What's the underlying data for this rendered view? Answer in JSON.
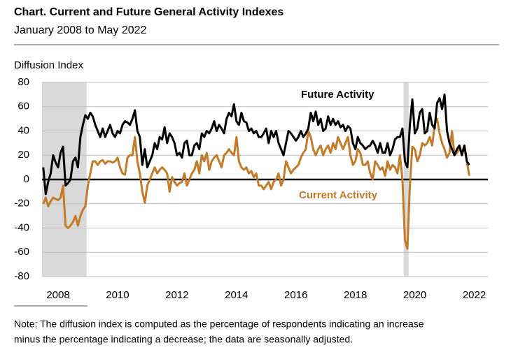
{
  "chart_data": {
    "type": "line",
    "title": "Chart. Current and Future General Activity Indexes",
    "subtitle": "January 2008 to May 2022",
    "y_axis_label": "Diffusion Index",
    "note": [
      "Note: The diffusion index is computed as the percentage of respondents indicating an increase",
      "minus the percentage indicating a decrease; the data are seasonally adjusted."
    ],
    "categories": [
      null,
      null,
      null,
      null,
      null,
      null,
      "2008",
      null,
      null,
      null,
      null,
      null,
      null,
      null,
      null,
      null,
      null,
      null,
      null,
      null,
      null,
      null,
      null,
      null,
      null,
      null,
      null,
      null,
      null,
      null,
      "2010",
      null,
      null,
      null,
      null,
      null,
      null,
      null,
      null,
      null,
      null,
      null,
      null,
      null,
      null,
      null,
      null,
      null,
      null,
      null,
      null,
      null,
      null,
      null,
      "2012",
      null,
      null,
      null,
      null,
      null,
      null,
      null,
      null,
      null,
      null,
      null,
      null,
      null,
      null,
      null,
      null,
      null,
      null,
      null,
      null,
      null,
      null,
      null,
      "2014",
      null,
      null,
      null,
      null,
      null,
      null,
      null,
      null,
      null,
      null,
      null,
      null,
      null,
      null,
      null,
      null,
      null,
      null,
      null,
      null,
      null,
      null,
      null,
      "2016",
      null,
      null,
      null,
      null,
      null,
      null,
      null,
      null,
      null,
      null,
      null,
      null,
      null,
      null,
      null,
      null,
      null,
      null,
      null,
      null,
      null,
      null,
      null,
      "2018",
      null,
      null,
      null,
      null,
      null,
      null,
      null,
      null,
      null,
      null,
      null,
      null,
      null,
      null,
      null,
      null,
      null,
      null,
      null,
      null,
      null,
      null,
      null,
      "2020",
      null,
      null,
      null,
      null,
      null,
      null,
      null,
      null,
      null,
      null,
      null,
      null,
      null,
      null,
      null,
      null,
      null,
      null,
      null,
      null,
      null,
      null,
      null,
      "2022",
      null,
      null,
      null,
      null,
      null
    ],
    "series": [
      {
        "name": "Future Activity",
        "color": "#000000",
        "values": [
          10,
          -12,
          -2,
          5,
          20,
          14,
          10,
          22,
          27,
          -5,
          -3,
          0,
          15,
          18,
          10,
          35,
          45,
          53,
          50,
          55,
          52,
          45,
          40,
          35,
          42,
          35,
          40,
          45,
          38,
          35,
          40,
          38,
          45,
          48,
          47,
          45,
          50,
          57,
          40,
          35,
          12,
          25,
          10,
          15,
          20,
          30,
          25,
          35,
          33,
          43,
          30,
          38,
          35,
          30,
          20,
          22,
          18,
          30,
          32,
          20,
          20,
          28,
          30,
          25,
          38,
          35,
          40,
          38,
          42,
          48,
          40,
          45,
          42,
          38,
          50,
          55,
          52,
          62,
          48,
          45,
          55,
          48,
          47,
          40,
          42,
          38,
          40,
          35,
          35,
          38,
          42,
          30,
          40,
          35,
          40,
          30,
          25,
          20,
          30,
          40,
          38,
          35,
          32,
          35,
          40,
          35,
          38,
          42,
          55,
          48,
          56,
          45,
          50,
          40,
          42,
          52,
          45,
          50,
          45,
          48,
          43,
          45,
          40,
          44,
          42,
          30,
          25,
          35,
          30,
          28,
          25,
          27,
          28,
          32,
          28,
          22,
          30,
          22,
          22,
          30,
          20,
          25,
          33,
          35,
          35,
          42,
          15,
          10,
          45,
          66,
          38,
          42,
          55,
          58,
          38,
          40,
          55,
          45,
          42,
          63,
          67,
          58,
          70,
          40,
          30,
          25,
          20,
          25,
          28,
          20,
          28,
          15,
          12,
          null,
          null,
          null,
          null,
          null,
          null,
          null
        ]
      },
      {
        "name": "Current Activity",
        "color": "#c47a26",
        "values": [
          -20,
          -15,
          -22,
          -18,
          -15,
          -16,
          -17,
          -15,
          -5,
          -38,
          -40,
          -38,
          -35,
          -30,
          -38,
          -30,
          -25,
          -22,
          -5,
          5,
          15,
          15,
          12,
          15,
          16,
          13,
          15,
          15,
          14,
          15,
          18,
          10,
          5,
          4,
          18,
          20,
          20,
          35,
          15,
          5,
          -10,
          -19,
          -5,
          0,
          5,
          10,
          5,
          8,
          10,
          8,
          5,
          -10,
          2,
          -2,
          -5,
          -3,
          -2,
          5,
          -5,
          0,
          5,
          8,
          15,
          5,
          20,
          15,
          22,
          8,
          15,
          18,
          20,
          15,
          10,
          20,
          22,
          25,
          22,
          20,
          35,
          15,
          10,
          8,
          10,
          5,
          7,
          2,
          5,
          -5,
          -5,
          -8,
          -5,
          -2,
          -8,
          -2,
          0,
          5,
          -5,
          0,
          15,
          10,
          5,
          8,
          10,
          12,
          18,
          22,
          25,
          40,
          35,
          25,
          20,
          25,
          28,
          20,
          25,
          28,
          22,
          30,
          25,
          35,
          30,
          25,
          30,
          35,
          20,
          12,
          15,
          25,
          22,
          12,
          12,
          15,
          5,
          0,
          15,
          12,
          8,
          10,
          3,
          15,
          8,
          12,
          10,
          5,
          20,
          0,
          -50,
          -57,
          -5,
          27,
          25,
          15,
          20,
          30,
          28,
          30,
          35,
          28,
          45,
          50,
          38,
          30,
          25,
          18,
          22,
          40,
          20,
          22,
          25,
          22,
          28,
          15,
          3,
          null,
          null,
          null,
          null,
          null,
          null,
          null
        ]
      }
    ],
    "shaded_ranges": [
      [
        0,
        17
      ],
      [
        146,
        147
      ]
    ],
    "ylim": [
      -80,
      80
    ],
    "yticks": [
      80,
      60,
      40,
      20,
      0,
      -20,
      -40,
      -60,
      -80
    ],
    "grid": true
  }
}
